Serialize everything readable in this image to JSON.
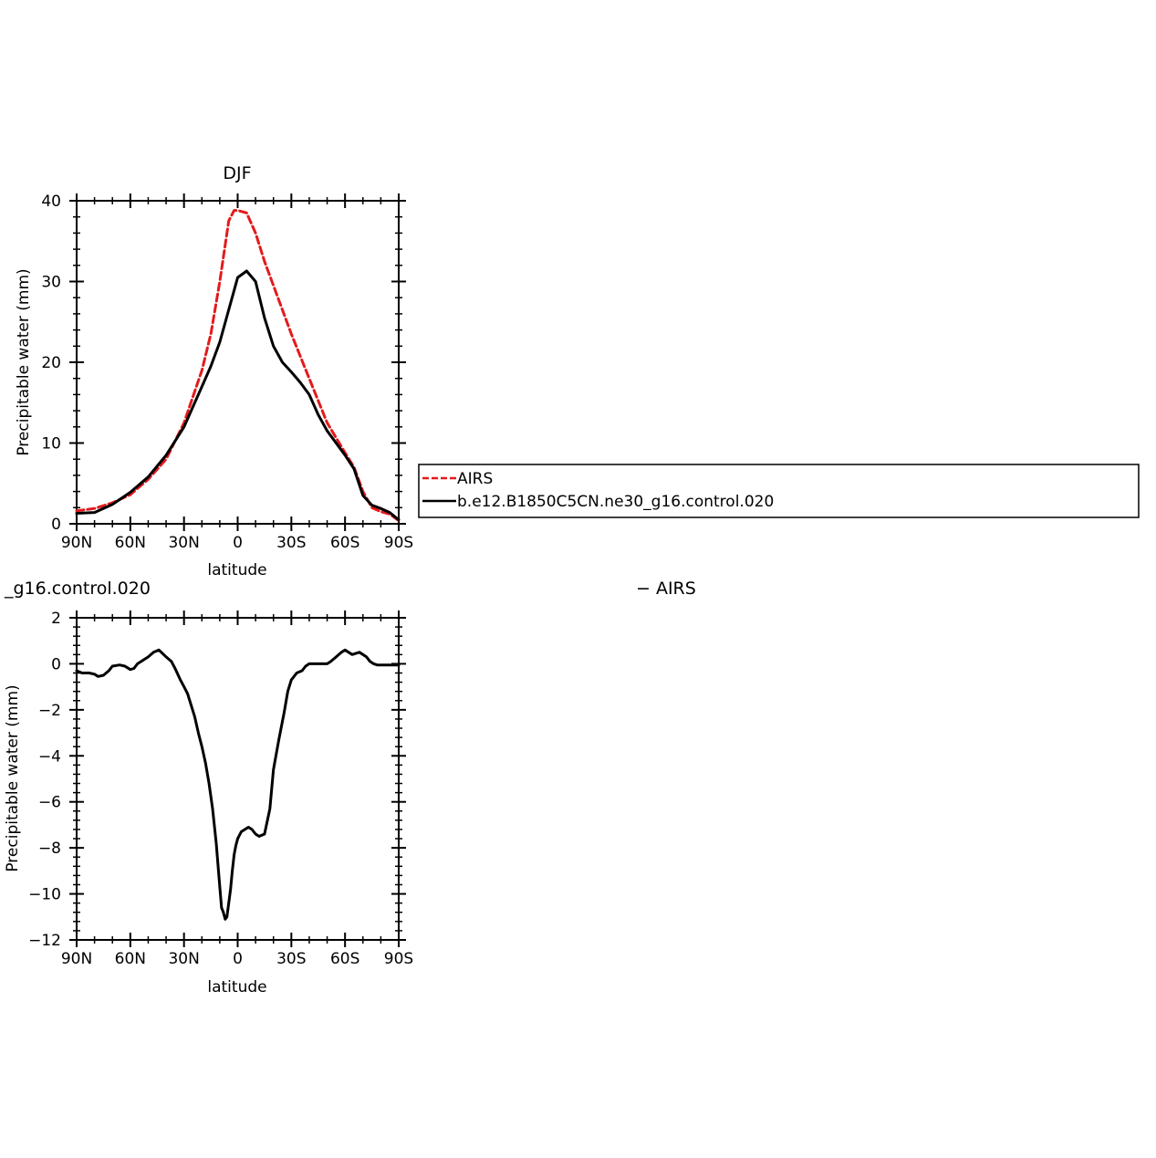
{
  "chart_data": [
    {
      "type": "line",
      "title": "DJF",
      "xlabel": "latitude",
      "ylabel": "Precipitable water (mm)",
      "xlim": [
        90,
        -90
      ],
      "ylim": [
        0,
        40
      ],
      "xticks": [
        90,
        60,
        30,
        0,
        -30,
        -60,
        -90
      ],
      "xtick_labels": [
        "90N",
        "60N",
        "30N",
        "0",
        "30S",
        "60S",
        "90S"
      ],
      "yticks": [
        0,
        10,
        20,
        30,
        40
      ],
      "ytick_labels": [
        "0",
        "10",
        "20",
        "30",
        "40"
      ],
      "legend": "right",
      "series": [
        {
          "name": "AIRS",
          "color": "#e31a1c",
          "style": "dashed",
          "x": [
            90,
            80,
            70,
            60,
            50,
            40,
            30,
            20,
            15,
            10,
            5,
            2,
            0,
            -5,
            -10,
            -15,
            -20,
            -30,
            -40,
            -50,
            -60,
            -65,
            -70,
            -75,
            -80,
            -85,
            -90
          ],
          "values": [
            1.6,
            1.9,
            2.6,
            3.6,
            5.5,
            8.0,
            12.5,
            19.0,
            23.5,
            30.0,
            37.5,
            38.8,
            38.8,
            38.5,
            36.0,
            32.5,
            29.5,
            23.5,
            18.0,
            12.5,
            8.8,
            7.0,
            4.0,
            2.0,
            1.5,
            1.2,
            0.4
          ]
        },
        {
          "name": "b.e12.B1850C5CN.ne30_g16.control.020",
          "color": "#000000",
          "style": "solid",
          "x": [
            90,
            80,
            70,
            60,
            50,
            40,
            30,
            20,
            15,
            10,
            5,
            0,
            -5,
            -10,
            -15,
            -20,
            -25,
            -30,
            -35,
            -40,
            -45,
            -50,
            -60,
            -65,
            -70,
            -75,
            -80,
            -85,
            -90
          ],
          "values": [
            1.3,
            1.4,
            2.4,
            3.9,
            5.8,
            8.5,
            12.0,
            17.0,
            19.5,
            22.5,
            26.5,
            30.5,
            31.3,
            30.0,
            25.5,
            22.0,
            20.0,
            18.8,
            17.5,
            16.0,
            13.5,
            11.5,
            8.5,
            6.8,
            3.5,
            2.3,
            1.9,
            1.4,
            0.5
          ]
        }
      ]
    },
    {
      "type": "line",
      "title_left": "_g16.control.020",
      "title_right": "− AIRS",
      "xlabel": "latitude",
      "ylabel": "Precipitable water (mm)",
      "xlim": [
        90,
        -90
      ],
      "ylim": [
        -12,
        2
      ],
      "xticks": [
        90,
        60,
        30,
        0,
        -30,
        -60,
        -90
      ],
      "xtick_labels": [
        "90N",
        "60N",
        "30N",
        "0",
        "30S",
        "60S",
        "90S"
      ],
      "yticks": [
        -12,
        -10,
        -8,
        -6,
        -4,
        -2,
        0,
        2
      ],
      "ytick_labels": [
        "−12",
        "−10",
        "−8",
        "−6",
        "−4",
        "−2",
        "0",
        "2"
      ],
      "series": [
        {
          "color": "#000000",
          "style": "solid",
          "x": [
            90,
            87,
            83,
            80,
            78,
            75,
            72,
            70,
            66,
            63,
            60,
            58,
            56,
            53,
            50,
            47,
            44,
            42,
            40,
            37,
            35,
            32,
            30,
            28,
            26,
            24,
            22,
            20,
            18,
            16,
            14,
            12,
            10,
            9,
            8,
            7,
            6,
            5,
            4,
            3,
            2,
            1,
            0,
            -2,
            -4,
            -6,
            -8,
            -10,
            -12,
            -15,
            -18,
            -20,
            -23,
            -26,
            -28,
            -30,
            -33,
            -36,
            -38,
            -40,
            -42,
            -45,
            -48,
            -50,
            -52,
            -55,
            -58,
            -60,
            -62,
            -64,
            -66,
            -68,
            -70,
            -72,
            -74,
            -76,
            -78,
            -80,
            -82,
            -84,
            -86,
            -88,
            -90
          ],
          "values": [
            -0.3,
            -0.4,
            -0.4,
            -0.45,
            -0.55,
            -0.5,
            -0.3,
            -0.1,
            -0.05,
            -0.1,
            -0.25,
            -0.2,
            0.0,
            0.15,
            0.3,
            0.5,
            0.6,
            0.45,
            0.3,
            0.1,
            -0.2,
            -0.7,
            -1.0,
            -1.3,
            -1.8,
            -2.3,
            -3.0,
            -3.6,
            -4.3,
            -5.2,
            -6.3,
            -7.8,
            -9.7,
            -10.6,
            -10.8,
            -11.1,
            -11.0,
            -10.4,
            -9.8,
            -9.0,
            -8.3,
            -7.9,
            -7.6,
            -7.3,
            -7.2,
            -7.1,
            -7.2,
            -7.4,
            -7.5,
            -7.4,
            -6.3,
            -4.6,
            -3.3,
            -2.1,
            -1.2,
            -0.7,
            -0.4,
            -0.3,
            -0.1,
            0.0,
            0.0,
            0.0,
            0.0,
            0.0,
            0.1,
            0.3,
            0.5,
            0.6,
            0.5,
            0.4,
            0.45,
            0.5,
            0.4,
            0.3,
            0.1,
            0.0,
            -0.05,
            -0.05,
            -0.05,
            -0.05,
            -0.05,
            -0.05,
            -0.05
          ]
        }
      ]
    }
  ]
}
